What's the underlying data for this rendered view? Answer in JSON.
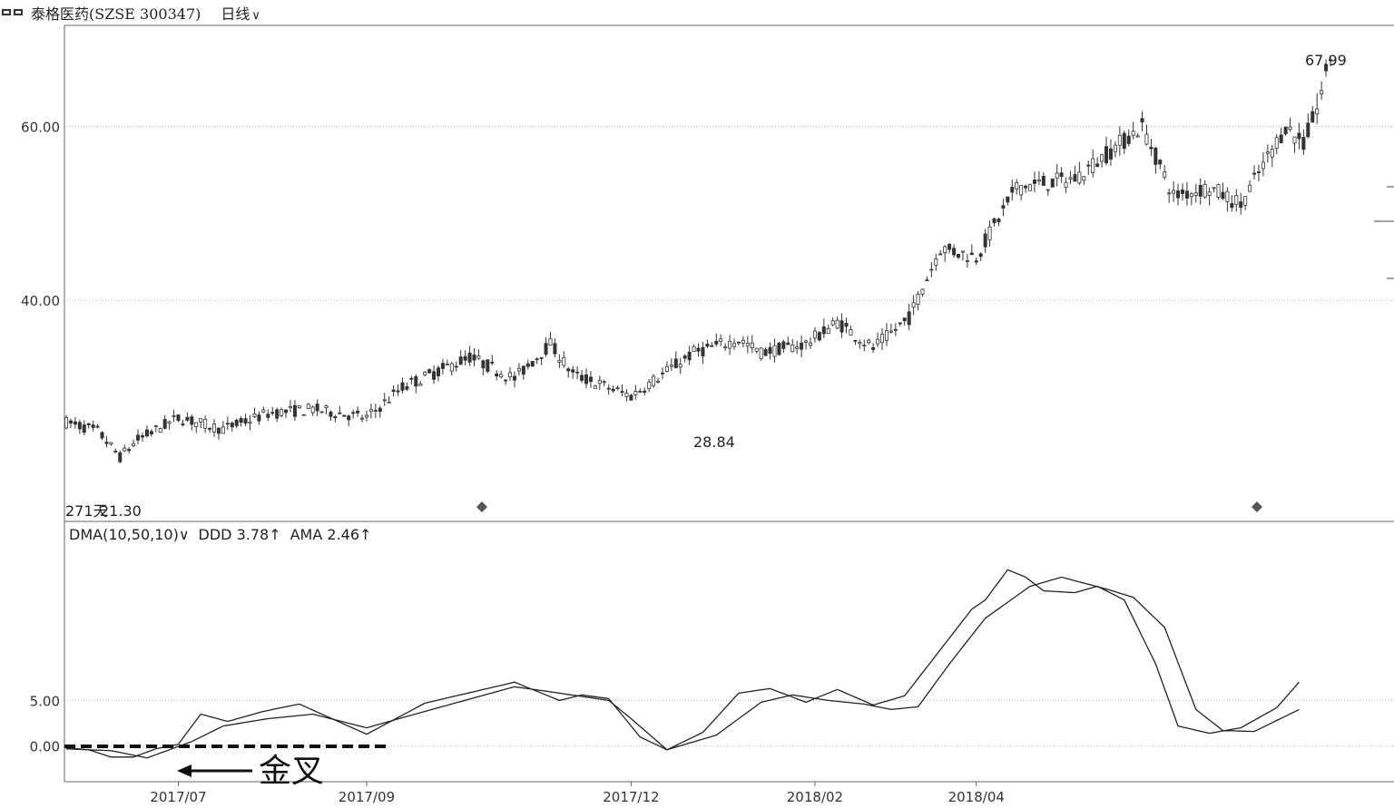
{
  "header": {
    "stock": "泰格医药(SZSE 300347)",
    "period": "日线",
    "caret": "∨"
  },
  "colors": {
    "axis": "#666666",
    "grid": "#bbbbbb",
    "candle": "#333333",
    "line": "#222222"
  },
  "chart_data": [
    {
      "type": "candlestick",
      "title": "泰格医药(SZSE 300347)",
      "ylim": [
        14.6,
        71.6
      ],
      "y_ticks": [
        "60.00",
        "40.00"
      ],
      "y_tick_values": [
        60,
        40
      ],
      "x_ticks": [
        "2017/07",
        "2017/09",
        "2017/12",
        "2018/02",
        "2018/04"
      ],
      "x_tick_index": [
        25,
        67,
        126,
        167,
        203
      ],
      "annotations": {
        "low_label": "271天",
        "low_value": "21.30",
        "mid_low": "28.84",
        "high": "67.99"
      },
      "anchors": [
        [
          0,
          26
        ],
        [
          7,
          25
        ],
        [
          12,
          22
        ],
        [
          16,
          24
        ],
        [
          25,
          26.5
        ],
        [
          35,
          25.2
        ],
        [
          45,
          27
        ],
        [
          55,
          27.5
        ],
        [
          67,
          26.5
        ],
        [
          75,
          30
        ],
        [
          90,
          33.5
        ],
        [
          100,
          31
        ],
        [
          108,
          35
        ],
        [
          113,
          31.5
        ],
        [
          126,
          29
        ],
        [
          140,
          34
        ],
        [
          150,
          35.5
        ],
        [
          155,
          34
        ],
        [
          165,
          35
        ],
        [
          172,
          37.5
        ],
        [
          180,
          34.5
        ],
        [
          188,
          38
        ],
        [
          195,
          46
        ],
        [
          203,
          45
        ],
        [
          212,
          53
        ],
        [
          225,
          54
        ],
        [
          240,
          60
        ],
        [
          247,
          52
        ],
        [
          255,
          53
        ],
        [
          262,
          51
        ],
        [
          272,
          60
        ],
        [
          276,
          58
        ],
        [
          279,
          62
        ],
        [
          282,
          68
        ]
      ]
    },
    {
      "type": "line",
      "legend_name": "DMA(10,50,10)",
      "caret": "∨",
      "ddd_label": "DDD 3.78",
      "ama_label": "AMA 2.46",
      "arrow": "↑",
      "ylim": [
        -3.9,
        24.6
      ],
      "y_ticks": [
        "5.00",
        "0.00"
      ],
      "y_tick_values": [
        5,
        0
      ],
      "series": [
        {
          "name": "DDD",
          "values": [
            [
              0,
              -0.2
            ],
            [
              5,
              -0.4
            ],
            [
              10,
              -1.2
            ],
            [
              15,
              -1.2
            ],
            [
              20,
              -0.3
            ],
            [
              25,
              0.2
            ],
            [
              30,
              3.5
            ],
            [
              36,
              2.7
            ],
            [
              44,
              3.8
            ],
            [
              52,
              4.6
            ],
            [
              67,
              1.3
            ],
            [
              80,
              4.7
            ],
            [
              100,
              7.0
            ],
            [
              110,
              5.0
            ],
            [
              115,
              5.6
            ],
            [
              121,
              5.2
            ],
            [
              128,
              1.0
            ],
            [
              134,
              -0.4
            ],
            [
              142,
              1.5
            ],
            [
              150,
              5.8
            ],
            [
              157,
              6.3
            ],
            [
              165,
              4.8
            ],
            [
              172,
              6.2
            ],
            [
              180,
              4.5
            ],
            [
              187,
              5.5
            ],
            [
              202,
              15.0
            ],
            [
              205,
              16.0
            ],
            [
              210,
              19.3
            ],
            [
              214,
              18.5
            ],
            [
              218,
              17.0
            ],
            [
              225,
              16.8
            ],
            [
              230,
              17.5
            ],
            [
              236,
              16.0
            ],
            [
              243,
              9.0
            ],
            [
              248,
              2.2
            ],
            [
              255,
              1.4
            ],
            [
              262,
              2.0
            ],
            [
              270,
              4.2
            ],
            [
              275,
              7.0
            ]
          ]
        },
        {
          "name": "AMA",
          "values": [
            [
              0,
              -0.3
            ],
            [
              10,
              -0.5
            ],
            [
              18,
              -1.3
            ],
            [
              28,
              0.5
            ],
            [
              35,
              2.2
            ],
            [
              45,
              3.0
            ],
            [
              55,
              3.5
            ],
            [
              67,
              2.0
            ],
            [
              80,
              3.8
            ],
            [
              100,
              6.5
            ],
            [
              110,
              5.8
            ],
            [
              121,
              5.0
            ],
            [
              126,
              3.0
            ],
            [
              134,
              -0.4
            ],
            [
              145,
              1.2
            ],
            [
              155,
              4.8
            ],
            [
              162,
              5.6
            ],
            [
              170,
              5.0
            ],
            [
              178,
              4.6
            ],
            [
              184,
              4.0
            ],
            [
              190,
              4.3
            ],
            [
              197,
              9.0
            ],
            [
              205,
              14.0
            ],
            [
              215,
              17.5
            ],
            [
              222,
              18.5
            ],
            [
              232,
              17.2
            ],
            [
              238,
              16.3
            ],
            [
              245,
              13.0
            ],
            [
              252,
              4.0
            ],
            [
              258,
              1.7
            ],
            [
              265,
              1.6
            ],
            [
              275,
              4.0
            ]
          ]
        }
      ],
      "overlay": {
        "label": "金叉"
      }
    }
  ]
}
